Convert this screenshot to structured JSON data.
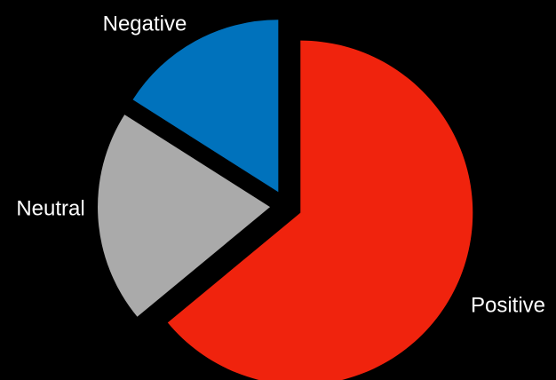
{
  "chart_data": {
    "type": "pie",
    "title": "",
    "categories": [
      "Positive",
      "Neutral",
      "Negative"
    ],
    "values": [
      64,
      20,
      16
    ],
    "colors": [
      "#f0230d",
      "#aaaaaa",
      "#0072bc"
    ],
    "background": "#000000",
    "exploded": true,
    "legend": "none",
    "label_color": "#ffffff"
  }
}
